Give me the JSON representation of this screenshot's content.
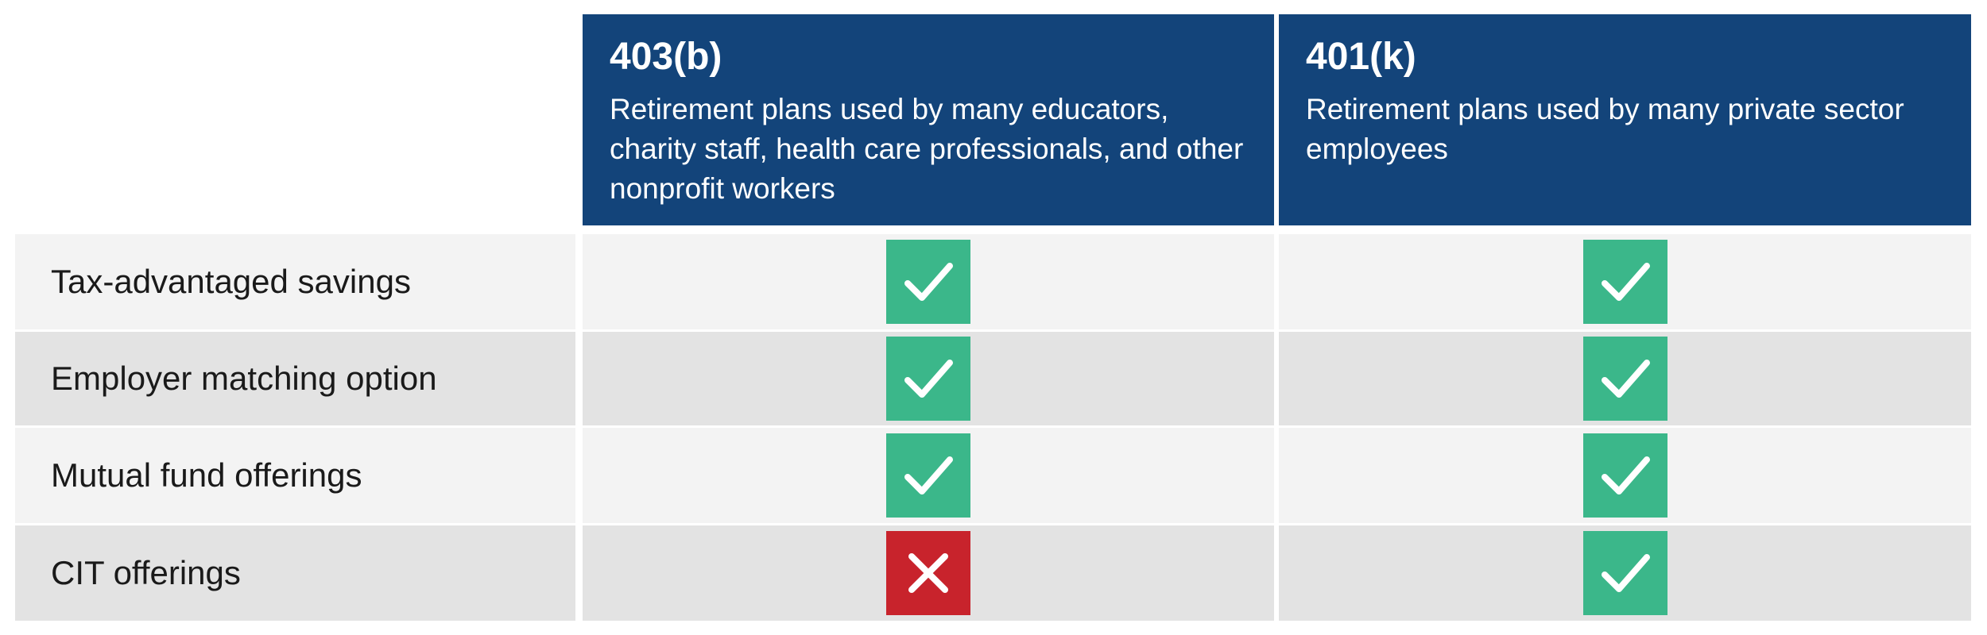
{
  "table": {
    "columns": [
      {
        "title": "403(b)",
        "description": "Retirement plans used by many educators, charity staff, health care professionals, and other nonprofit workers"
      },
      {
        "title": "401(k)",
        "description": "Retirement plans used by many private sector employees"
      }
    ],
    "rows": [
      {
        "label": "Tax-advantaged savings",
        "values": [
          true,
          true
        ]
      },
      {
        "label": "Employer matching option",
        "values": [
          true,
          true
        ]
      },
      {
        "label": "Mutual fund offerings",
        "values": [
          true,
          true
        ]
      },
      {
        "label": "CIT offerings",
        "values": [
          false,
          true
        ]
      }
    ]
  }
}
